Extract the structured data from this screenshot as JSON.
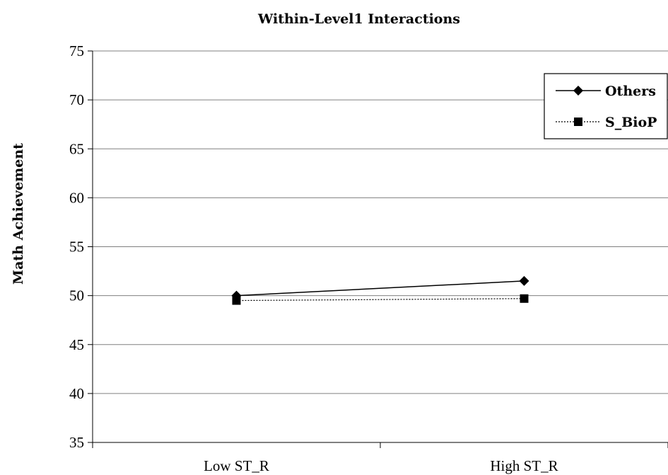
{
  "chart_data": {
    "type": "line",
    "title": "Within-Level1 Interactions",
    "xlabel": "",
    "ylabel": "Math Achievement",
    "categories": [
      "Low ST_R",
      "High ST_R"
    ],
    "ylim": [
      35,
      75
    ],
    "yticks": [
      35,
      40,
      45,
      50,
      55,
      60,
      65,
      70,
      75
    ],
    "grid": true,
    "legend_position": "top-right",
    "series": [
      {
        "name": "Others",
        "values": [
          50.0,
          51.5
        ],
        "marker": "diamond",
        "line": "solid",
        "color": "#000000"
      },
      {
        "name": "S_BioP",
        "values": [
          49.5,
          49.7
        ],
        "marker": "square",
        "line": "dotted",
        "color": "#000000"
      }
    ]
  }
}
